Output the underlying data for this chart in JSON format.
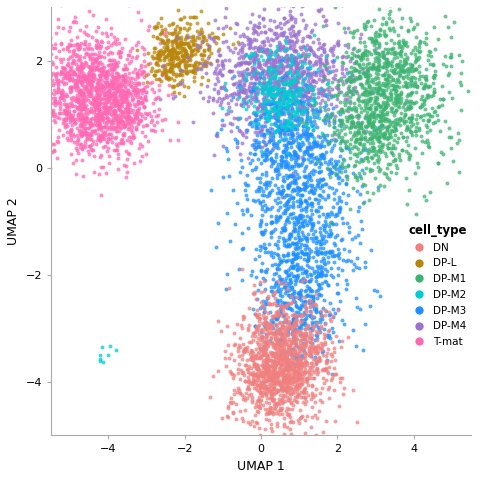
{
  "cell_types": [
    "DN",
    "DP-L",
    "DP-M1",
    "DP-M2",
    "DP-M3",
    "DP-M4",
    "T-mat"
  ],
  "colors": {
    "DN": "#F08080",
    "DP-L": "#B8860B",
    "DP-M1": "#3CB371",
    "DP-M2": "#00CED1",
    "DP-M3": "#1E90FF",
    "DP-M4": "#9B72CF",
    "T-mat": "#FF69B4"
  },
  "xlabel": "UMAP 1",
  "ylabel": "UMAP 2",
  "legend_title": "cell_type",
  "xlim": [
    -5.5,
    5.5
  ],
  "ylim": [
    -5.0,
    3.0
  ],
  "figsize": [
    4.8,
    4.8
  ],
  "dpi": 100,
  "point_size": 8,
  "alpha": 0.75,
  "seed": 42
}
